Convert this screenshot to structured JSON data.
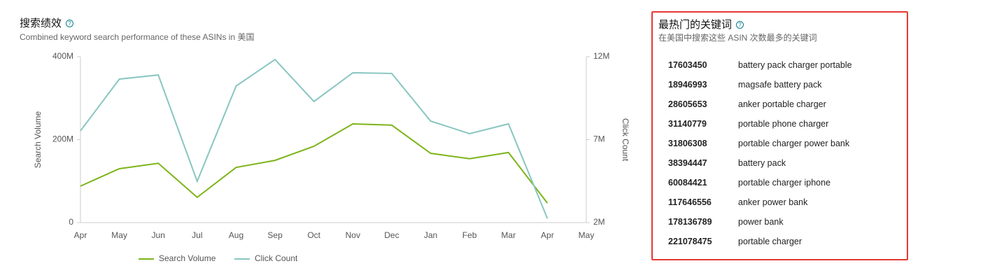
{
  "chart_data": {
    "type": "line",
    "title": "搜索绩效",
    "subtitle": "Combined keyword search performance of these ASINs in 美国",
    "y_label": "Search Volume",
    "y2_label": "Click Count",
    "categories": [
      "Apr",
      "May",
      "Jun",
      "Jul",
      "Aug",
      "Sep",
      "Oct",
      "Nov",
      "Dec",
      "Jan",
      "Feb",
      "Mar",
      "Apr",
      "May"
    ],
    "series": [
      {
        "name": "Search Volume",
        "color": "#7db41a",
        "values": [
          88000000,
          130000000,
          143000000,
          61000000,
          133000000,
          150000000,
          184000000,
          238000000,
          235000000,
          167000000,
          154000000,
          169000000,
          47000000,
          null
        ]
      },
      {
        "name": "Click Count",
        "color": "#88c6c1",
        "axis": "y2",
        "values": [
          7530000,
          10650000,
          10900000,
          4490000,
          10230000,
          11830000,
          9300000,
          11030000,
          10990000,
          8120000,
          7360000,
          7950000,
          2250000,
          null
        ]
      }
    ],
    "ylim": [
      0,
      400000000
    ],
    "yticks": [
      0,
      {
        "value": 200000000,
        "label": "200M"
      },
      {
        "value": 400000000,
        "label": "400M"
      }
    ],
    "y2lim": [
      2000000,
      12000000
    ],
    "y2ticks": [
      {
        "value": 2000000,
        "label": "2M"
      },
      {
        "value": 7000000,
        "label": "7M"
      },
      {
        "value": 12000000,
        "label": "12M"
      }
    ],
    "legend": "bottom"
  },
  "keywords": {
    "title": "最热门的关键词",
    "subtitle": "在美国中搜索这些 ASIN 次数最多的关键词",
    "rows": [
      [
        "17603450",
        "battery pack charger portable"
      ],
      [
        "18946993",
        "magsafe battery pack"
      ],
      [
        "28605653",
        "anker portable charger"
      ],
      [
        "31140779",
        "portable phone charger"
      ],
      [
        "31806308",
        "portable charger power bank"
      ],
      [
        "38394447",
        "battery pack"
      ],
      [
        "60084421",
        "portable charger iphone"
      ],
      [
        "117646556",
        "anker power bank"
      ],
      [
        "178136789",
        "power bank"
      ],
      [
        "221078475",
        "portable charger"
      ]
    ]
  }
}
